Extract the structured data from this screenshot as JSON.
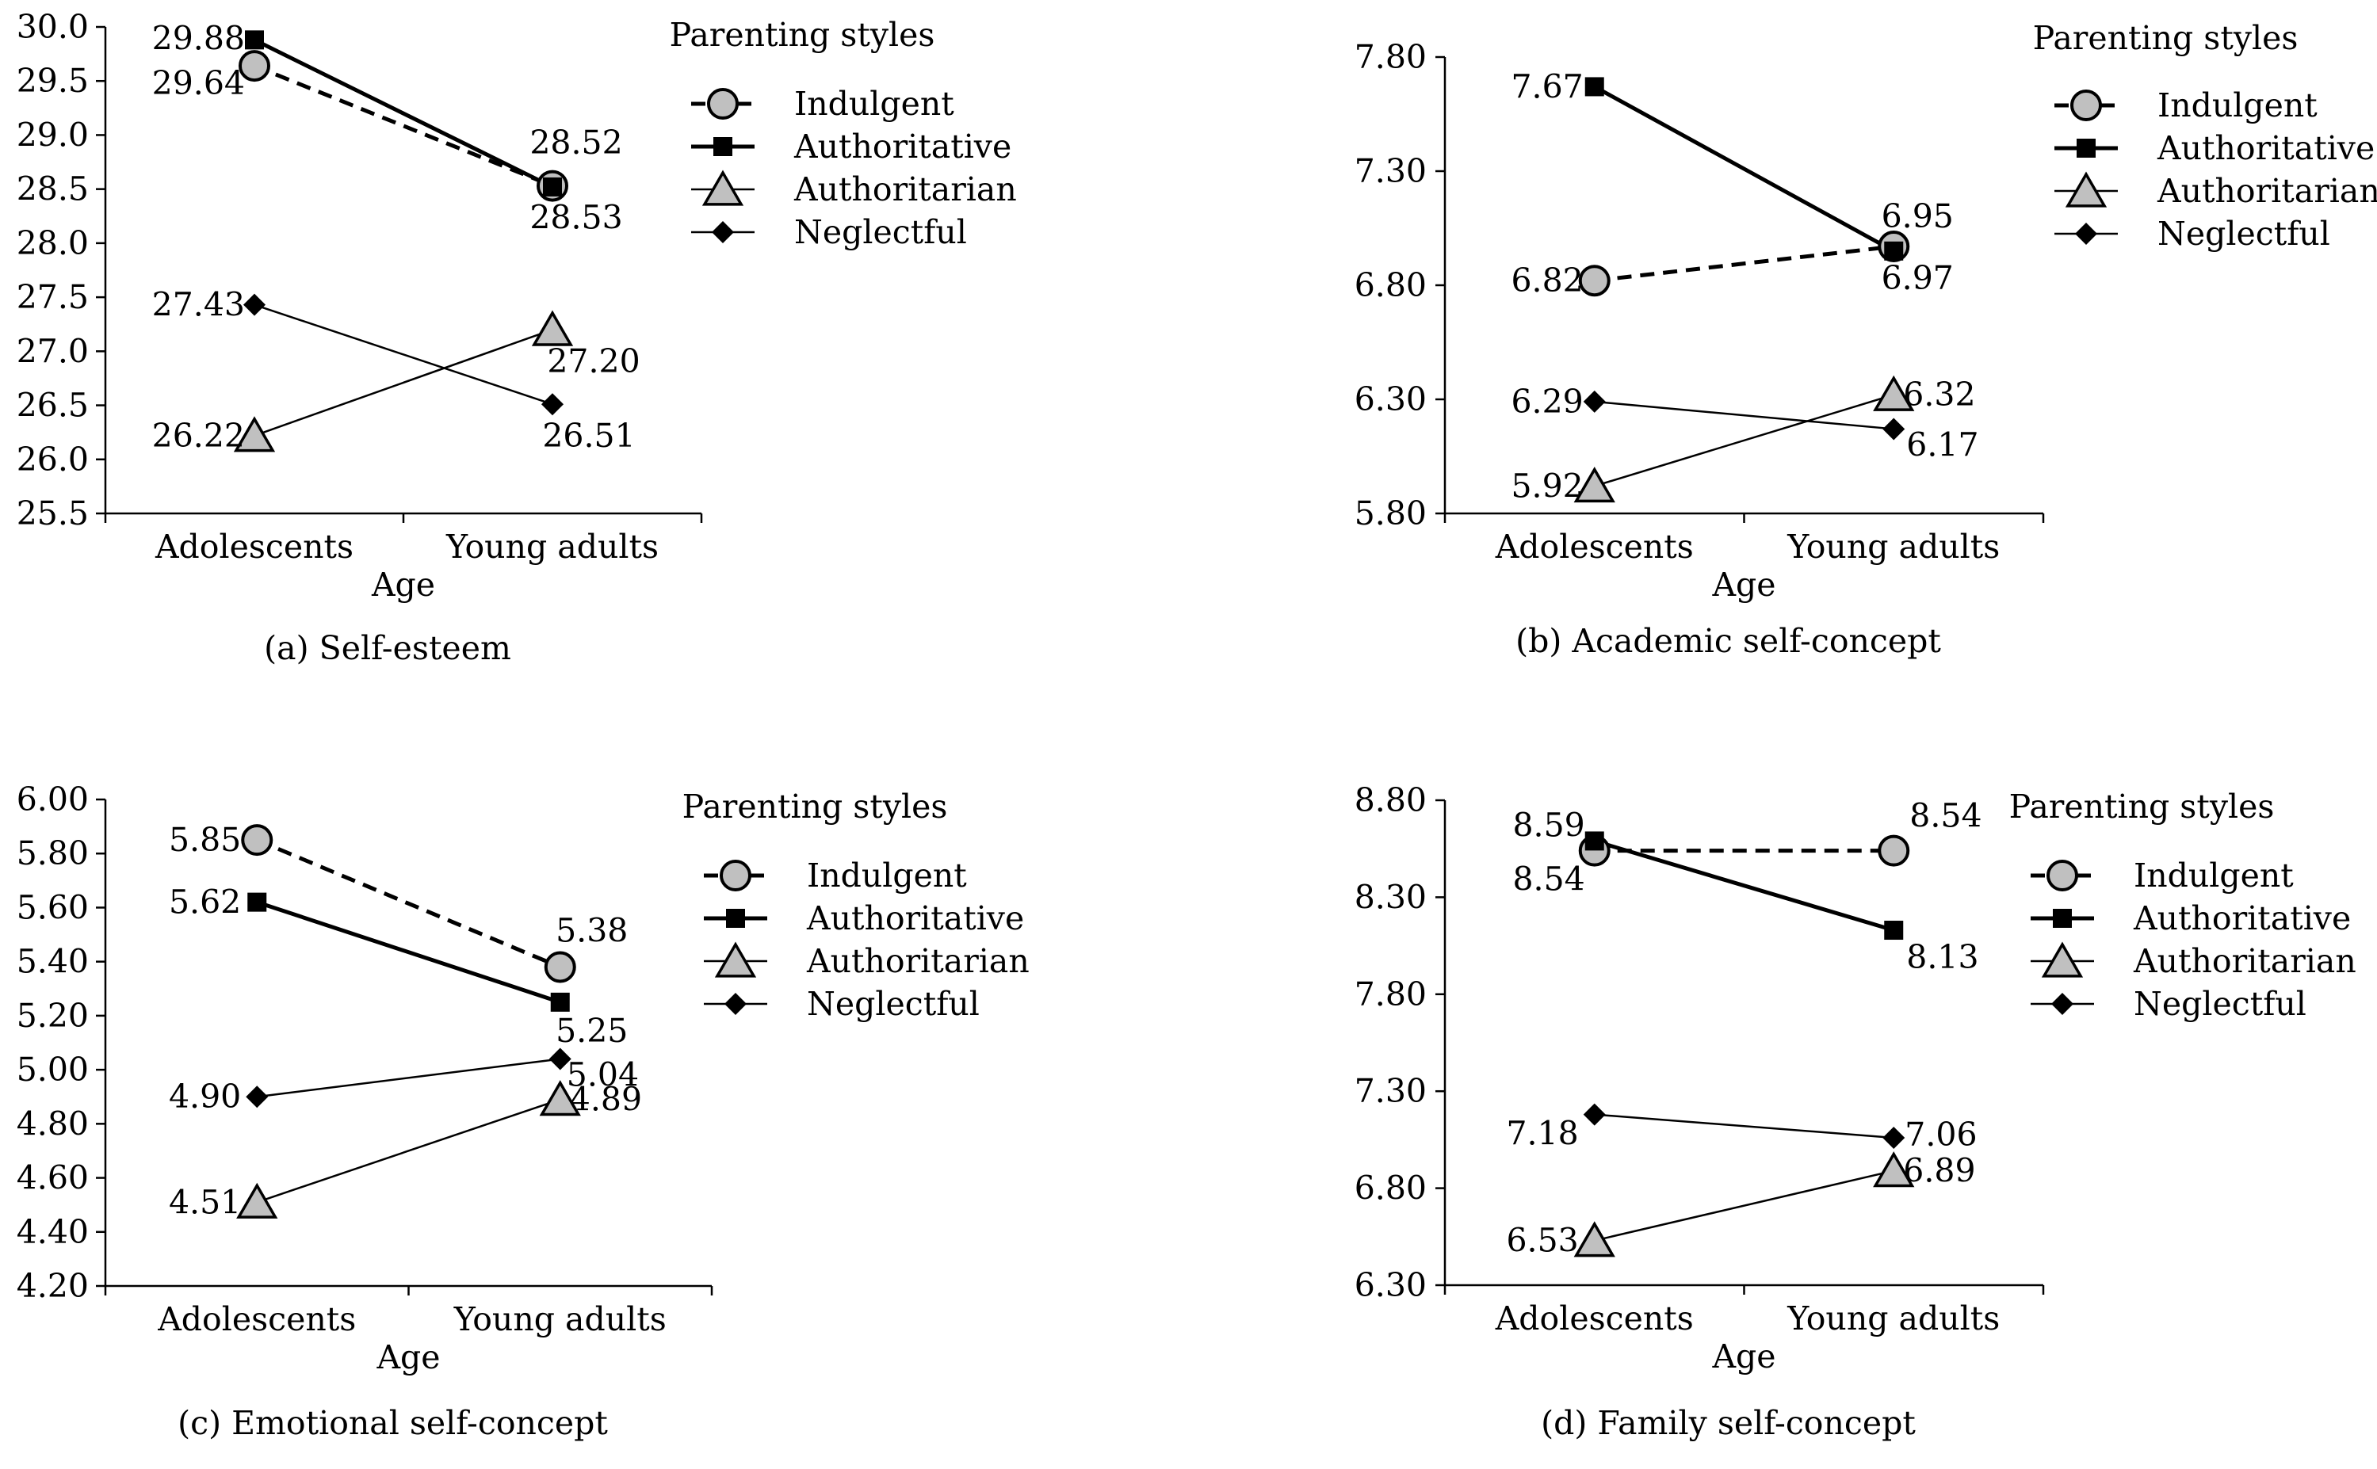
{
  "chart_data": [
    {
      "type": "line",
      "caption": "(a) Self-esteem",
      "xlabel": "Age",
      "ylabel": "",
      "categories": [
        "Adolescents",
        "Young adults"
      ],
      "ylim": [
        25.5,
        30.0
      ],
      "yticks": [
        25.5,
        26.0,
        26.5,
        27.0,
        27.5,
        28.0,
        28.5,
        29.0,
        29.5,
        30.0
      ],
      "ytick_labels": [
        "25.5",
        "26.0",
        "26.5",
        "27.0",
        "27.5",
        "28.0",
        "28.5",
        "29.0",
        "29.5",
        "30.0"
      ],
      "legend_title": "Parenting styles",
      "legend_position": "right",
      "series": [
        {
          "name": "Indulgent",
          "values": [
            29.64,
            28.53
          ],
          "labels": [
            "29.64",
            "28.53"
          ]
        },
        {
          "name": "Authoritative",
          "values": [
            29.88,
            28.52
          ],
          "labels": [
            "29.88",
            "28.52"
          ]
        },
        {
          "name": "Authoritarian",
          "values": [
            26.22,
            27.2
          ],
          "labels": [
            "26.22",
            "27.20"
          ]
        },
        {
          "name": "Neglectful",
          "values": [
            27.43,
            26.51
          ],
          "labels": [
            "27.43",
            "26.51"
          ]
        }
      ]
    },
    {
      "type": "line",
      "caption": "(b) Academic self-concept",
      "xlabel": "Age",
      "ylabel": "",
      "categories": [
        "Adolescents",
        "Young adults"
      ],
      "ylim": [
        5.8,
        7.8
      ],
      "yticks": [
        5.8,
        6.3,
        6.8,
        7.3,
        7.8
      ],
      "ytick_labels": [
        "5.80",
        "6.30",
        "6.80",
        "7.30",
        "7.80"
      ],
      "legend_title": "Parenting styles",
      "legend_position": "right",
      "series": [
        {
          "name": "Indulgent",
          "values": [
            6.82,
            6.97
          ],
          "labels": [
            "6.82",
            "6.97"
          ]
        },
        {
          "name": "Authoritative",
          "values": [
            7.67,
            6.95
          ],
          "labels": [
            "7.67",
            "6.95"
          ]
        },
        {
          "name": "Authoritarian",
          "values": [
            5.92,
            6.32
          ],
          "labels": [
            "5.92",
            "6.32"
          ]
        },
        {
          "name": "Neglectful",
          "values": [
            6.29,
            6.17
          ],
          "labels": [
            "6.29",
            "6.17"
          ]
        }
      ]
    },
    {
      "type": "line",
      "caption": "(c) Emotional self-concept",
      "xlabel": "Age",
      "ylabel": "",
      "categories": [
        "Adolescents",
        "Young adults"
      ],
      "ylim": [
        4.2,
        6.0
      ],
      "yticks": [
        4.2,
        4.4,
        4.6,
        4.8,
        5.0,
        5.2,
        5.4,
        5.6,
        5.8,
        6.0
      ],
      "ytick_labels": [
        "4.20",
        "4.40",
        "4.60",
        "4.80",
        "5.00",
        "5.20",
        "5.40",
        "5.60",
        "5.80",
        "6.00"
      ],
      "legend_title": "Parenting styles",
      "legend_position": "right",
      "series": [
        {
          "name": "Indulgent",
          "values": [
            5.85,
            5.38
          ],
          "labels": [
            "5.85",
            "5.38"
          ]
        },
        {
          "name": "Authoritative",
          "values": [
            5.62,
            5.25
          ],
          "labels": [
            "5.62",
            "5.25"
          ]
        },
        {
          "name": "Authoritarian",
          "values": [
            4.51,
            4.89
          ],
          "labels": [
            "4.51",
            "4.89"
          ]
        },
        {
          "name": "Neglectful",
          "values": [
            4.9,
            5.04
          ],
          "labels": [
            "4.90",
            "5.04"
          ]
        }
      ]
    },
    {
      "type": "line",
      "caption": "(d) Family self-concept",
      "xlabel": "Age",
      "ylabel": "",
      "categories": [
        "Adolescents",
        "Young adults"
      ],
      "ylim": [
        6.3,
        8.8
      ],
      "yticks": [
        6.3,
        6.8,
        7.3,
        7.8,
        8.3,
        8.8
      ],
      "ytick_labels": [
        "6.30",
        "6.80",
        "7.30",
        "7.80",
        "8.30",
        "8.80"
      ],
      "legend_title": "Parenting styles",
      "legend_position": "right",
      "series": [
        {
          "name": "Indulgent",
          "values": [
            8.54,
            8.54
          ],
          "labels": [
            "8.54",
            "8.54"
          ]
        },
        {
          "name": "Authoritative",
          "values": [
            8.59,
            8.13
          ],
          "labels": [
            "8.59",
            "8.13"
          ]
        },
        {
          "name": "Authoritarian",
          "values": [
            6.53,
            6.89
          ],
          "labels": [
            "6.53",
            "6.89"
          ]
        },
        {
          "name": "Neglectful",
          "values": [
            7.18,
            7.06
          ],
          "labels": [
            "7.18",
            "7.06"
          ]
        }
      ]
    }
  ],
  "style": {
    "indulgent_fill": "#c0c0c0",
    "authoritarian_fill": "#c0c0c0",
    "marker_color": "#000000",
    "line_color": "#000000",
    "marker_shapes": [
      "circle",
      "square",
      "triangle",
      "diamond"
    ]
  }
}
